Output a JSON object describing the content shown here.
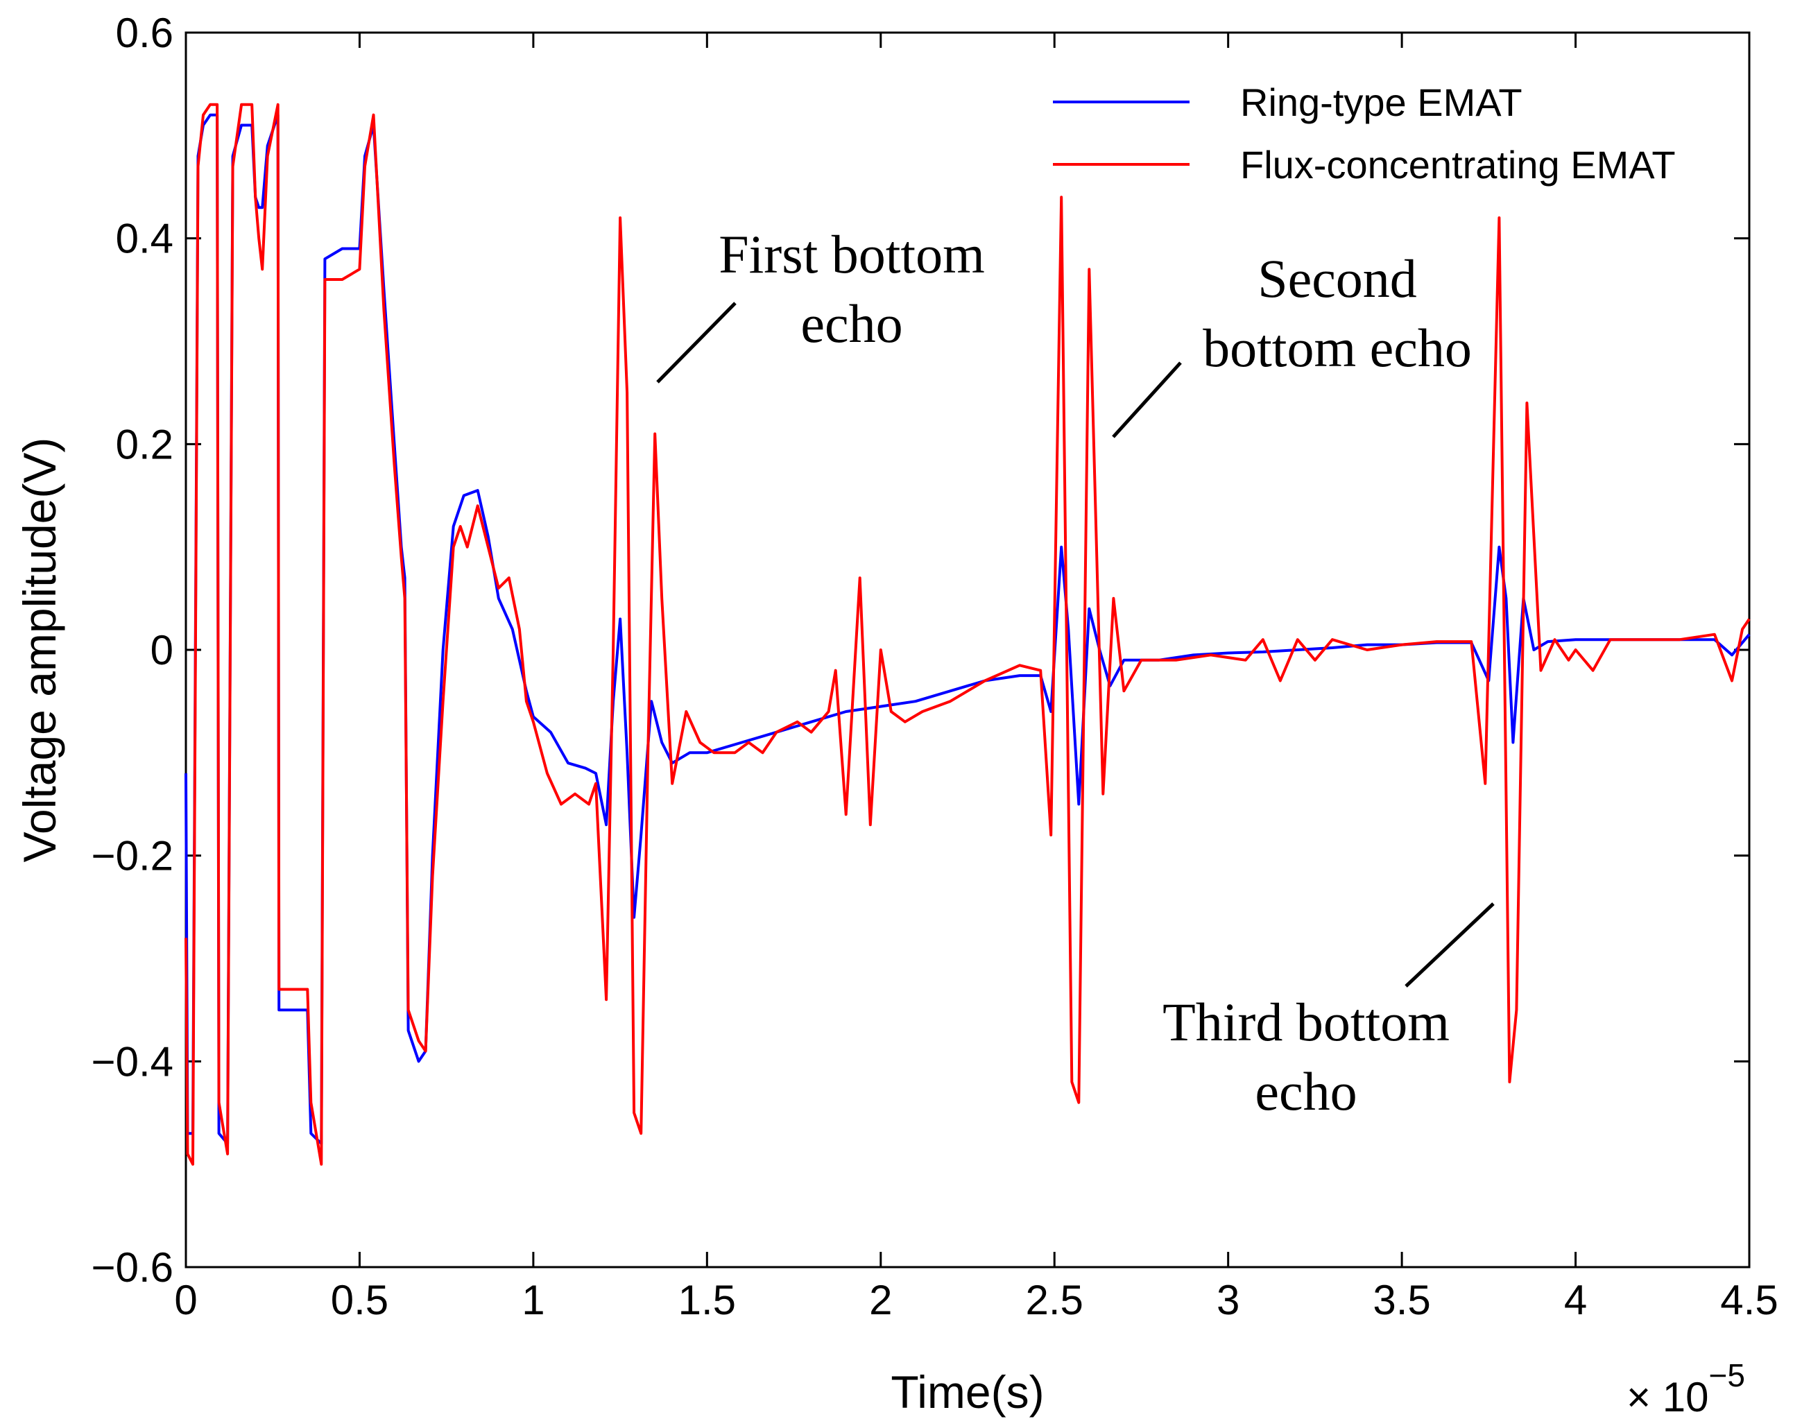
{
  "chart_data": {
    "type": "line",
    "xlabel": "Time(s)",
    "ylabel": "Voltage amplitude(V)",
    "x_multiplier_label": "× 10",
    "x_multiplier_exponent": "−5",
    "xlim": [
      0,
      4.5
    ],
    "ylim": [
      -0.6,
      0.6
    ],
    "x_ticks": [
      0,
      0.5,
      1,
      1.5,
      2,
      2.5,
      3,
      3.5,
      4,
      4.5
    ],
    "x_tick_labels": [
      "0",
      "0.5",
      "1",
      "1.5",
      "2",
      "2.5",
      "3",
      "3.5",
      "4",
      "4.5"
    ],
    "y_ticks": [
      -0.6,
      -0.4,
      -0.2,
      0,
      0.2,
      0.4,
      0.6
    ],
    "y_tick_labels": [
      "−0.6",
      "−0.4",
      "−0.2",
      "0",
      "0.2",
      "0.4",
      "0.6"
    ],
    "legend_position": "top-right",
    "series": [
      {
        "name": "Ring-type EMAT",
        "color": "#0000ff",
        "points": [
          [
            0,
            -0.12
          ],
          [
            0.005,
            -0.47
          ],
          [
            0.02,
            -0.47
          ],
          [
            0.035,
            0.48
          ],
          [
            0.05,
            0.51
          ],
          [
            0.07,
            0.52
          ],
          [
            0.09,
            0.52
          ],
          [
            0.095,
            -0.47
          ],
          [
            0.12,
            -0.48
          ],
          [
            0.135,
            0.48
          ],
          [
            0.16,
            0.51
          ],
          [
            0.19,
            0.51
          ],
          [
            0.2,
            0.44
          ],
          [
            0.21,
            0.43
          ],
          [
            0.22,
            0.43
          ],
          [
            0.235,
            0.49
          ],
          [
            0.265,
            0.52
          ],
          [
            0.268,
            -0.35
          ],
          [
            0.35,
            -0.35
          ],
          [
            0.36,
            -0.47
          ],
          [
            0.39,
            -0.48
          ],
          [
            0.4,
            0.38
          ],
          [
            0.45,
            0.39
          ],
          [
            0.5,
            0.39
          ],
          [
            0.515,
            0.48
          ],
          [
            0.54,
            0.51
          ],
          [
            0.57,
            0.35
          ],
          [
            0.6,
            0.2
          ],
          [
            0.62,
            0.1
          ],
          [
            0.63,
            0.07
          ],
          [
            0.64,
            -0.37
          ],
          [
            0.67,
            -0.4
          ],
          [
            0.69,
            -0.39
          ],
          [
            0.71,
            -0.2
          ],
          [
            0.74,
            0.0
          ],
          [
            0.77,
            0.12
          ],
          [
            0.8,
            0.15
          ],
          [
            0.84,
            0.155
          ],
          [
            0.87,
            0.11
          ],
          [
            0.9,
            0.05
          ],
          [
            0.94,
            0.02
          ],
          [
            0.98,
            -0.04
          ],
          [
            1.0,
            -0.065
          ],
          [
            1.05,
            -0.08
          ],
          [
            1.1,
            -0.11
          ],
          [
            1.15,
            -0.115
          ],
          [
            1.18,
            -0.12
          ],
          [
            1.21,
            -0.17
          ],
          [
            1.23,
            -0.05
          ],
          [
            1.25,
            0.03
          ],
          [
            1.27,
            -0.1
          ],
          [
            1.29,
            -0.26
          ],
          [
            1.31,
            -0.18
          ],
          [
            1.34,
            -0.05
          ],
          [
            1.37,
            -0.09
          ],
          [
            1.4,
            -0.11
          ],
          [
            1.45,
            -0.1
          ],
          [
            1.5,
            -0.1
          ],
          [
            1.6,
            -0.09
          ],
          [
            1.7,
            -0.08
          ],
          [
            1.8,
            -0.07
          ],
          [
            1.9,
            -0.06
          ],
          [
            2.0,
            -0.055
          ],
          [
            2.1,
            -0.05
          ],
          [
            2.2,
            -0.04
          ],
          [
            2.3,
            -0.03
          ],
          [
            2.4,
            -0.025
          ],
          [
            2.46,
            -0.025
          ],
          [
            2.49,
            -0.06
          ],
          [
            2.52,
            0.1
          ],
          [
            2.54,
            0.02
          ],
          [
            2.57,
            -0.15
          ],
          [
            2.6,
            0.04
          ],
          [
            2.63,
            0.0
          ],
          [
            2.66,
            -0.035
          ],
          [
            2.7,
            -0.01
          ],
          [
            2.8,
            -0.01
          ],
          [
            2.9,
            -0.005
          ],
          [
            3.0,
            -0.003
          ],
          [
            3.1,
            -0.002
          ],
          [
            3.2,
            0.0
          ],
          [
            3.3,
            0.002
          ],
          [
            3.4,
            0.005
          ],
          [
            3.5,
            0.005
          ],
          [
            3.6,
            0.007
          ],
          [
            3.7,
            0.007
          ],
          [
            3.75,
            -0.03
          ],
          [
            3.78,
            0.1
          ],
          [
            3.8,
            0.05
          ],
          [
            3.82,
            -0.09
          ],
          [
            3.85,
            0.05
          ],
          [
            3.88,
            0.0
          ],
          [
            3.92,
            0.008
          ],
          [
            4.0,
            0.01
          ],
          [
            4.1,
            0.01
          ],
          [
            4.2,
            0.01
          ],
          [
            4.3,
            0.01
          ],
          [
            4.4,
            0.01
          ],
          [
            4.45,
            -0.005
          ],
          [
            4.5,
            0.015
          ]
        ]
      },
      {
        "name": "Flux-concentrating EMAT",
        "color": "#ff0000",
        "points": [
          [
            0,
            -0.28
          ],
          [
            0.005,
            -0.49
          ],
          [
            0.02,
            -0.5
          ],
          [
            0.035,
            0.47
          ],
          [
            0.05,
            0.52
          ],
          [
            0.07,
            0.53
          ],
          [
            0.09,
            0.53
          ],
          [
            0.095,
            -0.44
          ],
          [
            0.12,
            -0.49
          ],
          [
            0.135,
            0.47
          ],
          [
            0.16,
            0.53
          ],
          [
            0.19,
            0.53
          ],
          [
            0.2,
            0.44
          ],
          [
            0.21,
            0.4
          ],
          [
            0.22,
            0.37
          ],
          [
            0.235,
            0.48
          ],
          [
            0.265,
            0.53
          ],
          [
            0.268,
            -0.33
          ],
          [
            0.35,
            -0.33
          ],
          [
            0.36,
            -0.44
          ],
          [
            0.39,
            -0.5
          ],
          [
            0.4,
            0.36
          ],
          [
            0.45,
            0.36
          ],
          [
            0.5,
            0.37
          ],
          [
            0.515,
            0.47
          ],
          [
            0.54,
            0.52
          ],
          [
            0.57,
            0.33
          ],
          [
            0.6,
            0.18
          ],
          [
            0.62,
            0.09
          ],
          [
            0.63,
            0.05
          ],
          [
            0.64,
            -0.35
          ],
          [
            0.67,
            -0.38
          ],
          [
            0.69,
            -0.39
          ],
          [
            0.71,
            -0.22
          ],
          [
            0.74,
            -0.05
          ],
          [
            0.77,
            0.1
          ],
          [
            0.79,
            0.12
          ],
          [
            0.81,
            0.1
          ],
          [
            0.84,
            0.14
          ],
          [
            0.87,
            0.1
          ],
          [
            0.9,
            0.06
          ],
          [
            0.93,
            0.07
          ],
          [
            0.96,
            0.02
          ],
          [
            0.98,
            -0.05
          ],
          [
            1.0,
            -0.07
          ],
          [
            1.04,
            -0.12
          ],
          [
            1.08,
            -0.15
          ],
          [
            1.12,
            -0.14
          ],
          [
            1.16,
            -0.15
          ],
          [
            1.18,
            -0.13
          ],
          [
            1.21,
            -0.34
          ],
          [
            1.23,
            0.0
          ],
          [
            1.25,
            0.42
          ],
          [
            1.27,
            0.25
          ],
          [
            1.29,
            -0.45
          ],
          [
            1.31,
            -0.47
          ],
          [
            1.33,
            -0.1
          ],
          [
            1.35,
            0.21
          ],
          [
            1.37,
            0.05
          ],
          [
            1.4,
            -0.13
          ],
          [
            1.44,
            -0.06
          ],
          [
            1.48,
            -0.09
          ],
          [
            1.52,
            -0.1
          ],
          [
            1.58,
            -0.1
          ],
          [
            1.62,
            -0.09
          ],
          [
            1.66,
            -0.1
          ],
          [
            1.7,
            -0.08
          ],
          [
            1.76,
            -0.07
          ],
          [
            1.8,
            -0.08
          ],
          [
            1.85,
            -0.06
          ],
          [
            1.87,
            -0.02
          ],
          [
            1.9,
            -0.16
          ],
          [
            1.94,
            0.07
          ],
          [
            1.97,
            -0.17
          ],
          [
            2.0,
            0.0
          ],
          [
            2.03,
            -0.06
          ],
          [
            2.07,
            -0.07
          ],
          [
            2.12,
            -0.06
          ],
          [
            2.2,
            -0.05
          ],
          [
            2.3,
            -0.03
          ],
          [
            2.4,
            -0.015
          ],
          [
            2.46,
            -0.02
          ],
          [
            2.49,
            -0.18
          ],
          [
            2.52,
            0.44
          ],
          [
            2.55,
            -0.42
          ],
          [
            2.57,
            -0.44
          ],
          [
            2.6,
            0.37
          ],
          [
            2.64,
            -0.14
          ],
          [
            2.67,
            0.05
          ],
          [
            2.7,
            -0.04
          ],
          [
            2.75,
            -0.01
          ],
          [
            2.85,
            -0.01
          ],
          [
            2.95,
            -0.005
          ],
          [
            3.05,
            -0.01
          ],
          [
            3.1,
            0.01
          ],
          [
            3.15,
            -0.03
          ],
          [
            3.2,
            0.01
          ],
          [
            3.25,
            -0.01
          ],
          [
            3.3,
            0.01
          ],
          [
            3.4,
            0.0
          ],
          [
            3.5,
            0.005
          ],
          [
            3.6,
            0.008
          ],
          [
            3.7,
            0.008
          ],
          [
            3.74,
            -0.13
          ],
          [
            3.78,
            0.42
          ],
          [
            3.81,
            -0.42
          ],
          [
            3.83,
            -0.35
          ],
          [
            3.86,
            0.24
          ],
          [
            3.9,
            -0.02
          ],
          [
            3.94,
            0.01
          ],
          [
            3.98,
            -0.01
          ],
          [
            4.0,
            0.0
          ],
          [
            4.05,
            -0.02
          ],
          [
            4.1,
            0.01
          ],
          [
            4.2,
            0.01
          ],
          [
            4.3,
            0.01
          ],
          [
            4.4,
            0.015
          ],
          [
            4.45,
            -0.03
          ],
          [
            4.48,
            0.02
          ],
          [
            4.5,
            0.03
          ]
        ]
      }
    ],
    "annotations": [
      {
        "name": "first-echo",
        "lines": [
          "First bottom",
          "echo"
        ]
      },
      {
        "name": "second-echo",
        "lines": [
          "Second",
          "bottom echo"
        ]
      },
      {
        "name": "third-echo",
        "lines": [
          "Third bottom",
          "echo"
        ]
      }
    ]
  }
}
